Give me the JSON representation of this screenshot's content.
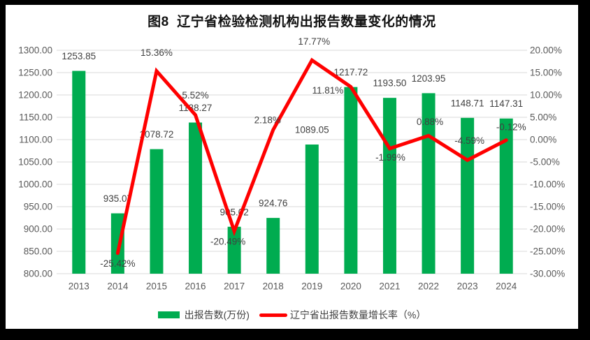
{
  "title": "图8  辽宁省检验检测机构出报告数量变化的情况",
  "chart_data": {
    "type": "combo-bar-line",
    "title": "图8  辽宁省检验检测机构出报告数量变化的情况",
    "categories": [
      "2013",
      "2014",
      "2015",
      "2016",
      "2017",
      "2018",
      "2019",
      "2020",
      "2021",
      "2022",
      "2023",
      "2024"
    ],
    "series": [
      {
        "name": "出报告数(万份)",
        "chart": "bar",
        "axis": "left",
        "color": "#00AC50",
        "values": [
          1253.85,
          935.07,
          1078.72,
          1138.27,
          905.02,
          924.76,
          1089.05,
          1217.72,
          1193.5,
          1203.95,
          1148.71,
          1147.31
        ],
        "labels": [
          "1253.85",
          "935.07",
          "1078.72",
          "1138.27",
          "905.02",
          "924.76",
          "1089.05",
          "1217.72",
          "1193.50",
          "1203.95",
          "1148.71",
          "1147.31"
        ]
      },
      {
        "name": "辽宁省出报告数量增长率（%）",
        "chart": "line",
        "axis": "right",
        "color": "#FF0000",
        "values": [
          null,
          -25.42,
          15.36,
          5.52,
          -20.49,
          2.18,
          17.77,
          11.81,
          -1.99,
          0.88,
          -4.59,
          -0.12
        ],
        "labels": [
          null,
          "-25.42%",
          "15.36%",
          "5.52%",
          "-20.49%",
          "2.18%",
          "17.77%",
          "11.81%",
          "-1.99%",
          "0.88%",
          "-4.59%",
          "-0.12%"
        ]
      }
    ],
    "left_axis": {
      "min": 800,
      "max": 1300,
      "step": 50,
      "ticks": [
        "1300.00",
        "1250.00",
        "1200.00",
        "1150.00",
        "1100.00",
        "1050.00",
        "1000.00",
        "950.00",
        "900.00",
        "850.00",
        "800.00"
      ]
    },
    "right_axis": {
      "min": -30,
      "max": 20,
      "step": 5,
      "ticks": [
        "20.00%",
        "15.00%",
        "10.00%",
        "5.00%",
        "0.00%",
        "-5.00%",
        "-10.00%",
        "-15.00%",
        "-20.00%",
        "-25.00%",
        "-30.00%"
      ]
    },
    "grid": true,
    "grid_color": "#D9D9D9",
    "legend_position": "bottom"
  },
  "legend": {
    "bar_label": "出报告数(万份)",
    "line_label": "辽宁省出报告数量增长率（%）"
  }
}
